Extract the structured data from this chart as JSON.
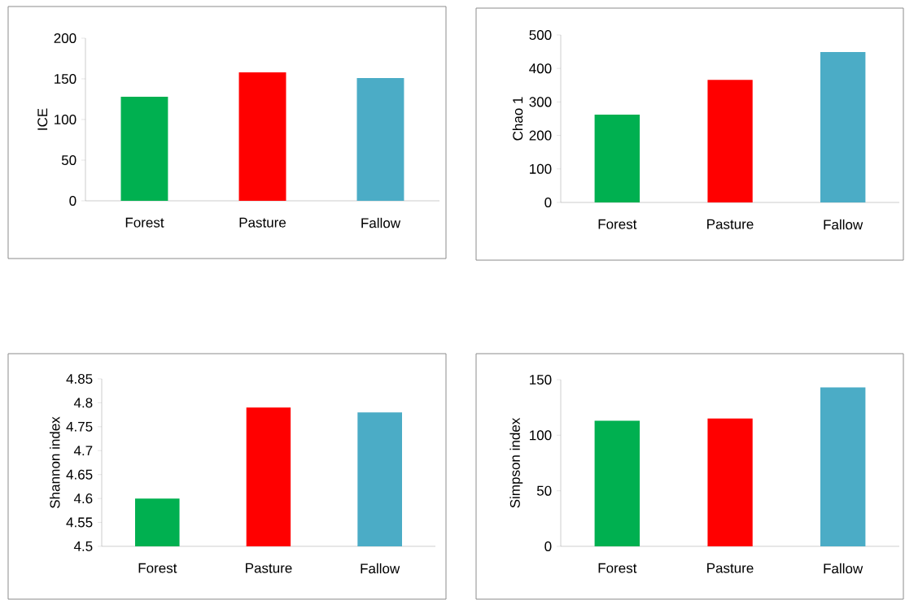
{
  "chart_data": [
    {
      "type": "bar",
      "ylabel": "ICE",
      "categories": [
        "Forest",
        "Pasture",
        "Fallow"
      ],
      "values": [
        128,
        158,
        151
      ],
      "colors": [
        "#00b050",
        "#ff0000",
        "#4bacc6"
      ],
      "ylim": [
        0,
        200
      ],
      "yticks": [
        0,
        50,
        100,
        150,
        200
      ],
      "grid": false
    },
    {
      "type": "bar",
      "ylabel": "Chao 1",
      "categories": [
        "Forest",
        "Pasture",
        "Fallow"
      ],
      "values": [
        262,
        366,
        449
      ],
      "colors": [
        "#00b050",
        "#ff0000",
        "#4bacc6"
      ],
      "ylim": [
        0,
        500
      ],
      "yticks": [
        0,
        100,
        200,
        300,
        400,
        500
      ],
      "grid": false
    },
    {
      "type": "bar",
      "ylabel": "Shannon index",
      "categories": [
        "Forest",
        "Pasture",
        "Fallow"
      ],
      "values": [
        4.6,
        4.79,
        4.78
      ],
      "colors": [
        "#00b050",
        "#ff0000",
        "#4bacc6"
      ],
      "ylim": [
        4.5,
        4.85
      ],
      "yticks": [
        4.5,
        4.55,
        4.6,
        4.65,
        4.7,
        4.75,
        4.8,
        4.85
      ],
      "grid": false
    },
    {
      "type": "bar",
      "ylabel": "Simpson index",
      "categories": [
        "Forest",
        "Pasture",
        "Fallow"
      ],
      "values": [
        113,
        115,
        143
      ],
      "colors": [
        "#00b050",
        "#ff0000",
        "#4bacc6"
      ],
      "ylim": [
        0,
        150
      ],
      "yticks": [
        0,
        50,
        100,
        150
      ],
      "grid": false
    }
  ]
}
